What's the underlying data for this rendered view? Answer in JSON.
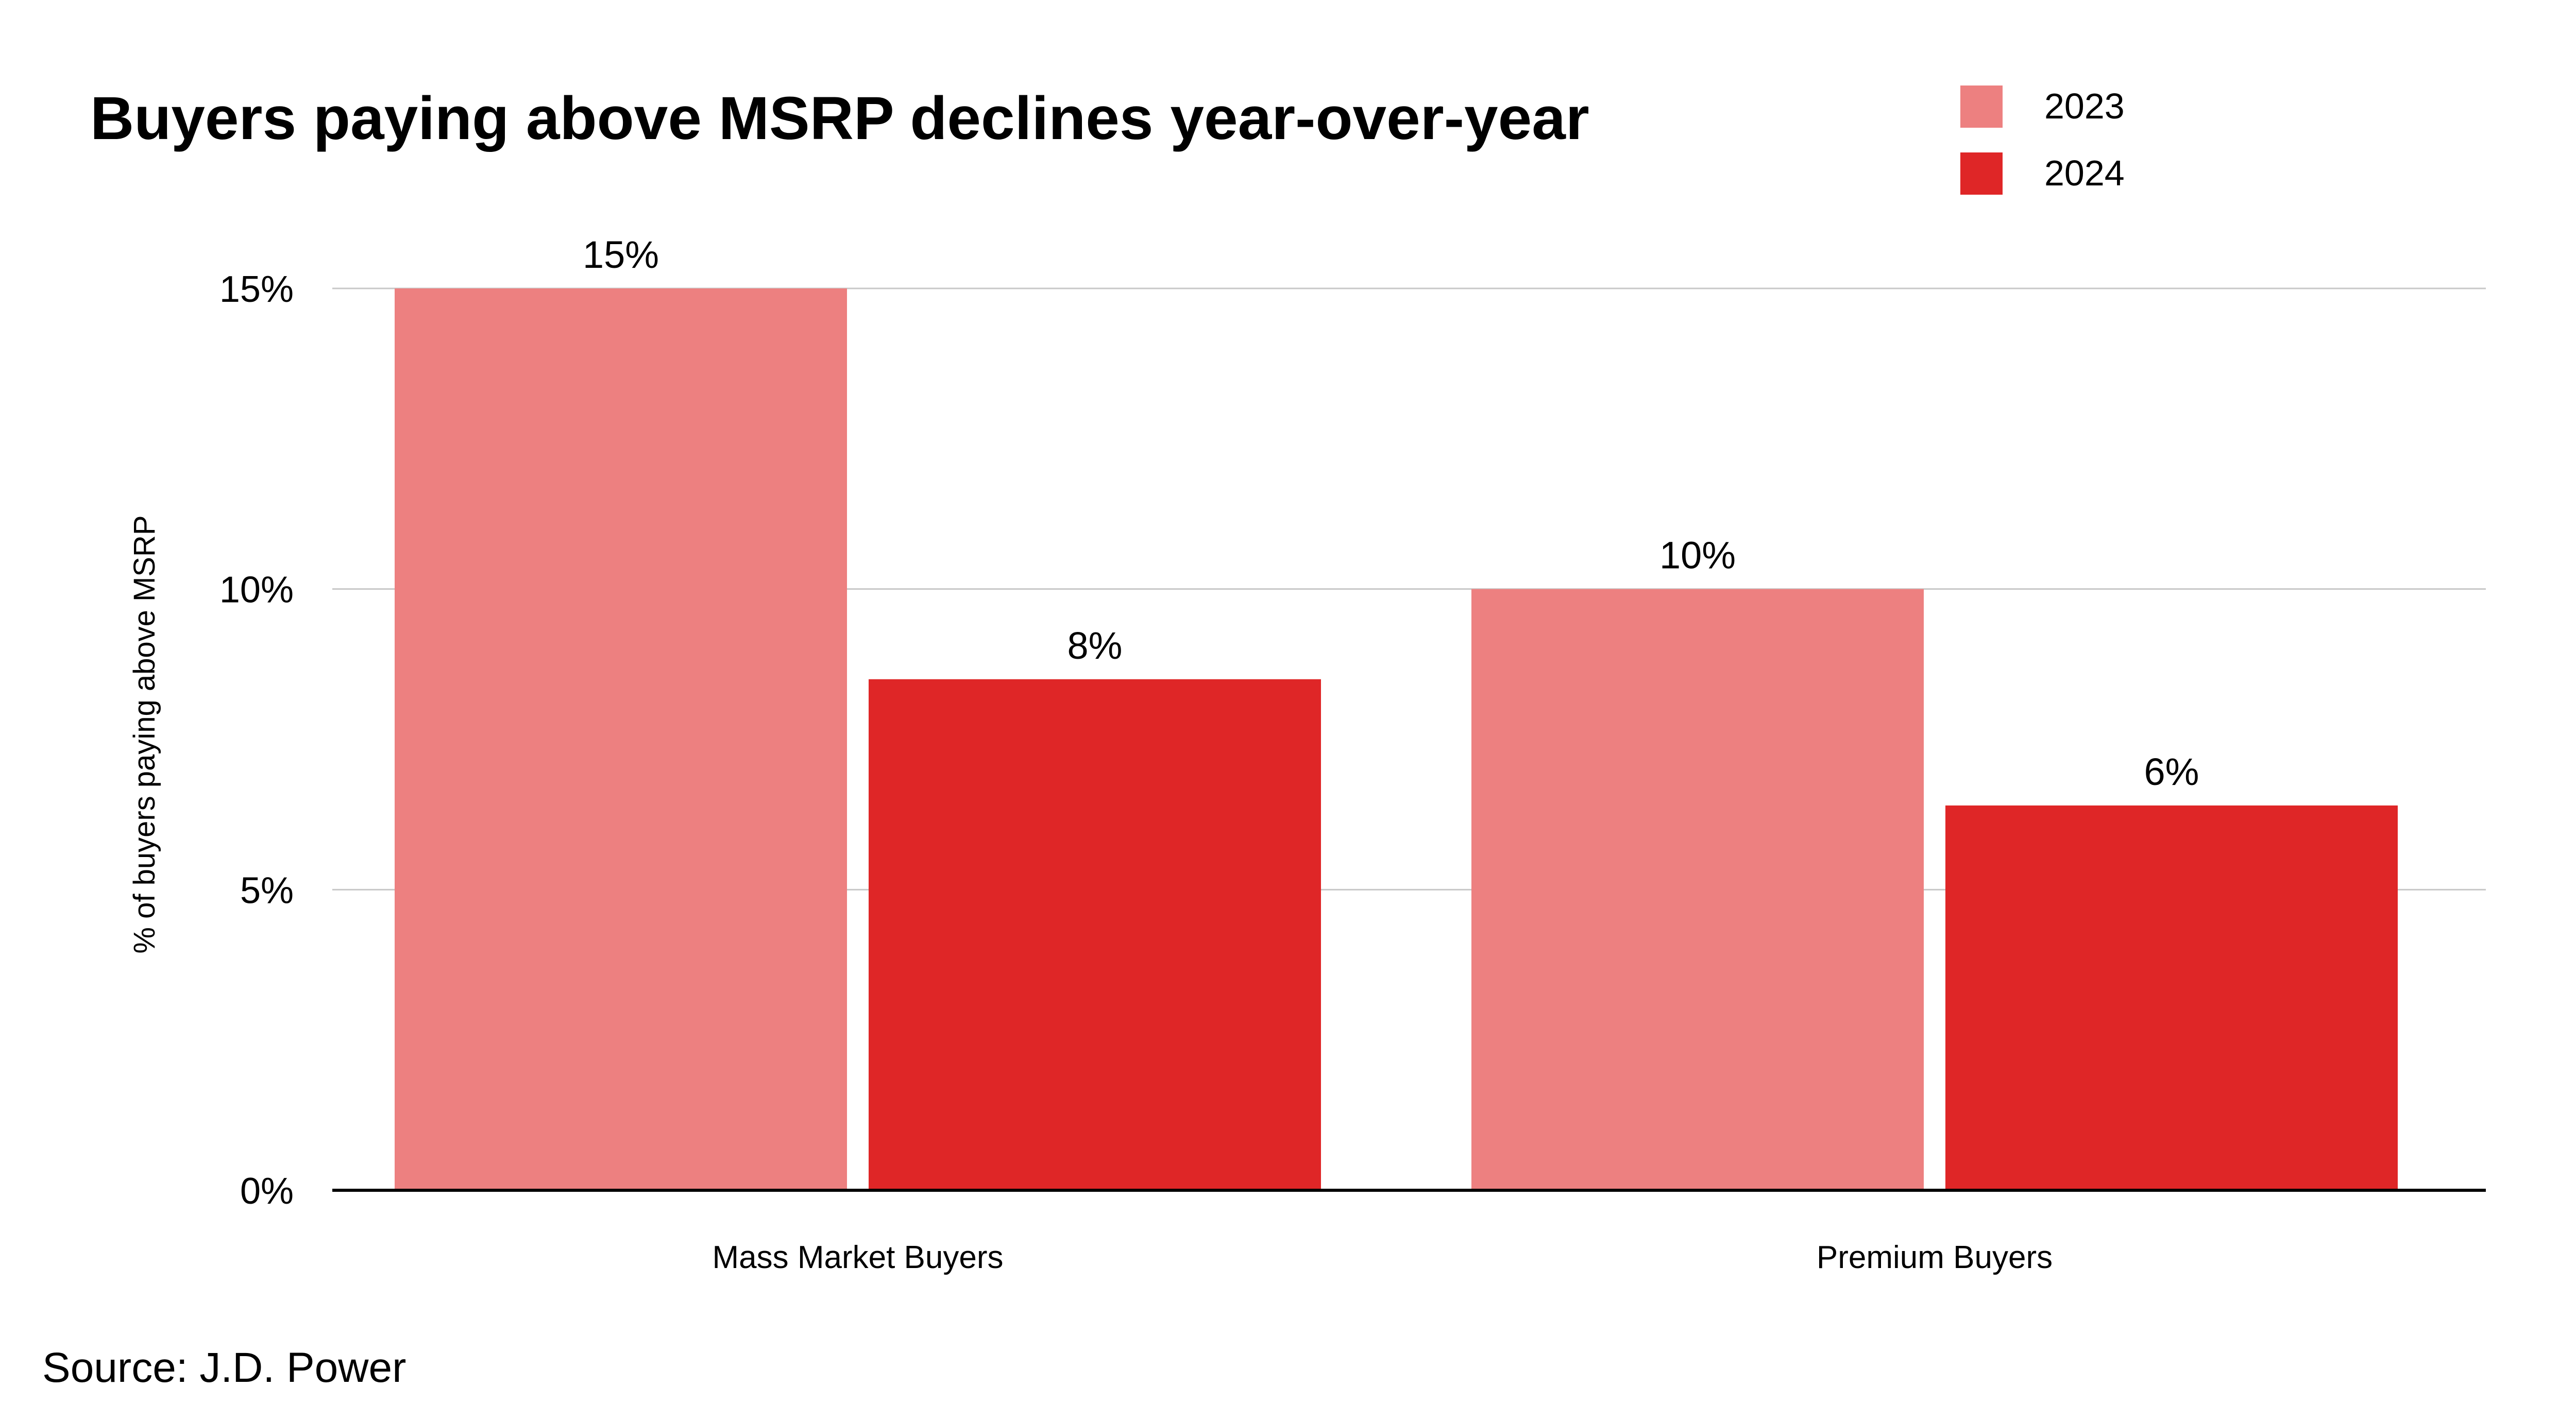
{
  "chart_data": {
    "type": "bar",
    "title": "Buyers paying above MSRP declines year-over-year",
    "xlabel": "",
    "ylabel": "% of buyers paying above MSRP",
    "categories": [
      "Mass Market Buyers",
      "Premium Buyers"
    ],
    "series": [
      {
        "name": "2023",
        "color": "#ed8080",
        "values": [
          15,
          10
        ],
        "data_labels": [
          "15%",
          "10%"
        ]
      },
      {
        "name": "2024",
        "color": "#df2627",
        "values": [
          8.5,
          6.4
        ],
        "data_labels": [
          "8%",
          "6%"
        ]
      }
    ],
    "ylim": [
      0,
      15
    ],
    "yticks": [
      0,
      5,
      10,
      15
    ],
    "ytick_labels": [
      "0%",
      "5%",
      "10%",
      "15%"
    ],
    "grid": true,
    "legend_position": "top-right"
  },
  "source": "Source: J.D. Power"
}
